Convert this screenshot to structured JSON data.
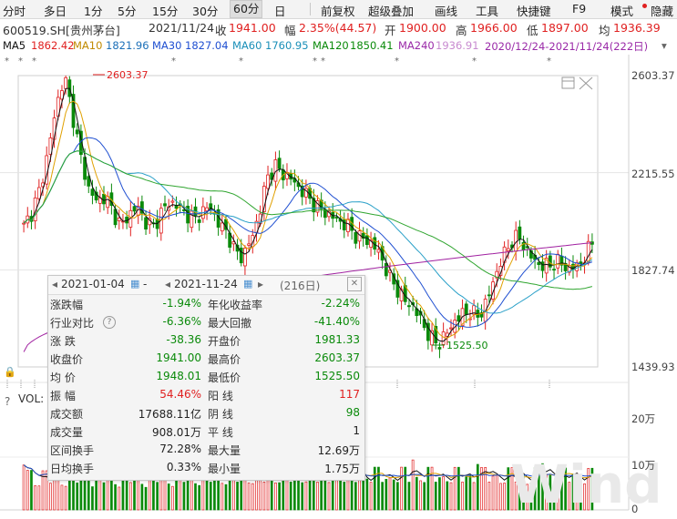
{
  "toolbar": {
    "items": [
      "分时",
      "多日",
      "1分",
      "5分",
      "15分",
      "30分",
      "60分",
      "日",
      "前复权",
      "超级叠加",
      "画线",
      "工具",
      "快捷键",
      "F9",
      "模式",
      "隐藏"
    ],
    "active_index": 6
  },
  "quote": {
    "code": "600519.SH[贵州茅台]",
    "date": "2021/11/24",
    "close_label": "收",
    "close": "1941.00",
    "change_label": "幅",
    "change": "2.35%(44.57)",
    "open_label": "开",
    "open": "1900.00",
    "high_label": "高",
    "high": "1966.00",
    "low_label": "低",
    "low": "1897.00",
    "avg_label": "均",
    "avg": "1936.39"
  },
  "ma": {
    "ma5": "MA5",
    "ma5_val": "1862.42",
    "ma10": "MA10",
    "ma10_val": "1821.96",
    "ma30": "MA30",
    "ma30_val": "1827.04",
    "ma60": "MA60",
    "ma60_val": "1760.95",
    "ma120": "MA120",
    "ma120_val": "1850.41",
    "ma240": "MA240",
    "ma240_val": "1936.91",
    "range": "2020/12/24-2021/11/24(222日)"
  },
  "price_axis": [
    "2603.37",
    "2215.55",
    "1827.74",
    "1439.93"
  ],
  "vol_axis": [
    "20万",
    "10万",
    "0"
  ],
  "annotations": {
    "high": "2603.37",
    "low": "1525.50"
  },
  "volume_label": "VOL:",
  "help_mark": "?",
  "popup": {
    "start_date": "2021-01-04",
    "end_date": "2021-11-24",
    "dash": "-",
    "days": "(216日)",
    "rows": [
      {
        "l1": "涨跌幅",
        "v1": "-1.94%",
        "c1": "green",
        "l2": "年化收益率",
        "v2": "-2.24%",
        "c2": "green"
      },
      {
        "l1": "行业对比",
        "v1": "-6.36%",
        "c1": "green",
        "l2": "最大回撤",
        "v2": "-41.40%",
        "c2": "green"
      },
      {
        "l1": "涨  跌",
        "v1": "-38.36",
        "c1": "green",
        "l2": "开盘价",
        "v2": "1981.33",
        "c2": "green"
      },
      {
        "l1": "收盘价",
        "v1": "1941.00",
        "c1": "green",
        "l2": "最高价",
        "v2": "2603.37",
        "c2": "green"
      },
      {
        "l1": "均  价",
        "v1": "1948.01",
        "c1": "green",
        "l2": "最低价",
        "v2": "1525.50",
        "c2": "green"
      },
      {
        "l1": "振  幅",
        "v1": "54.46%",
        "c1": "red",
        "l2": "阳  线",
        "v2": "117",
        "c2": "red"
      },
      {
        "l1": "成交额",
        "v1": "17688.11亿",
        "c1": "dark",
        "l2": "阴  线",
        "v2": "98",
        "c2": "green"
      },
      {
        "l1": "成交量",
        "v1": "908.01万",
        "c1": "dark",
        "l2": "平  线",
        "v2": "1",
        "c2": "dark"
      },
      {
        "l1": "区间换手",
        "v1": "72.28%",
        "c1": "dark",
        "l2": "最大量",
        "v2": "12.69万",
        "c2": "dark"
      },
      {
        "l1": "日均换手",
        "v1": "0.33%",
        "c1": "dark",
        "l2": "最小量",
        "v2": "1.75万",
        "c2": "dark"
      }
    ]
  },
  "colors": {
    "up": "#e02020",
    "down": "#0a8a0a",
    "ma5": "#111111",
    "ma10": "#e0a000",
    "ma30": "#1f4fd1",
    "ma60": "#2aa0c8",
    "ma120": "#2fa52f",
    "ma240": "#a020a0"
  },
  "chart_data": {
    "type": "candlestick",
    "title": "600519.SH[贵州茅台]",
    "y_ticks": [
      2603.37,
      2215.55,
      1827.74,
      1439.93
    ],
    "ylim": [
      1439.93,
      2603.37
    ],
    "high": 2603.37,
    "low": 1525.5,
    "last_close": 1941.0,
    "ma": {
      "MA5": 1862.42,
      "MA10": 1821.96,
      "MA30": 1827.04,
      "MA60": 1760.95,
      "MA120": 1850.41,
      "MA240": 1936.91
    },
    "close_path": [
      2000,
      2060,
      2150,
      2300,
      2480,
      2603,
      2450,
      2280,
      2150,
      2100,
      2120,
      2060,
      2000,
      2050,
      2080,
      2020,
      2000,
      2060,
      2100,
      2080,
      2050,
      2030,
      2060,
      2080,
      2010,
      1980,
      1900,
      1880,
      1950,
      2050,
      2200,
      2240,
      2210,
      2190,
      2150,
      2120,
      2080,
      2060,
      2040,
      2020,
      2000,
      1960,
      1950,
      1930,
      1880,
      1800,
      1750,
      1700,
      1680,
      1620,
      1560,
      1530,
      1570,
      1620,
      1650,
      1660,
      1640,
      1700,
      1800,
      1880,
      1940,
      1960,
      1900,
      1860,
      1840,
      1850,
      1860,
      1830,
      1840,
      1870,
      1941
    ]
  }
}
